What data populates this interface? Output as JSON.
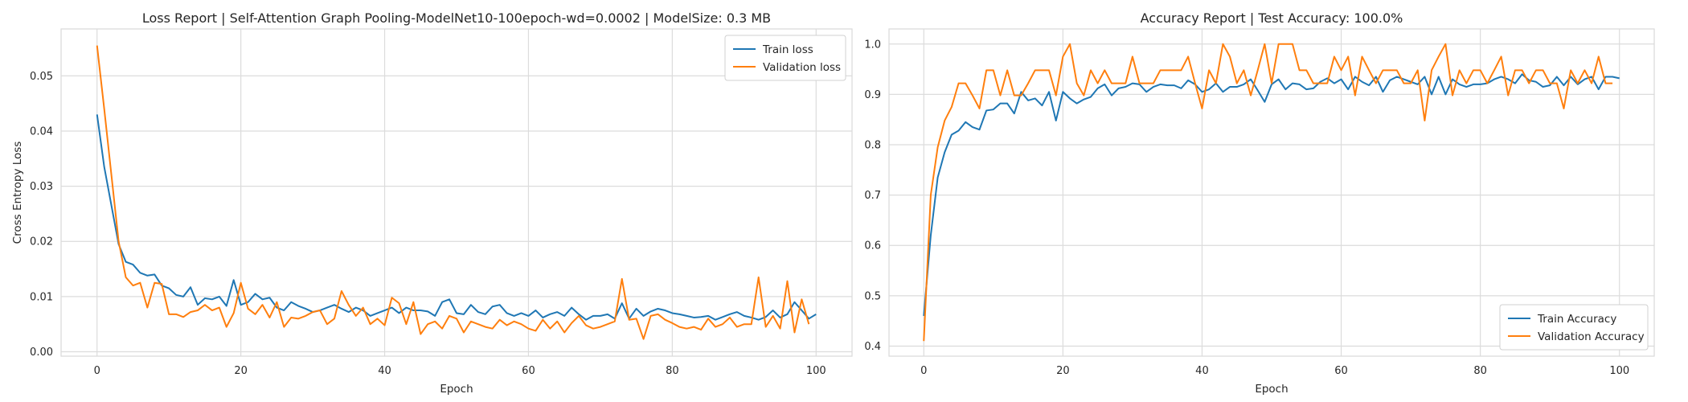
{
  "chart_data": [
    {
      "type": "line",
      "title": "Loss Report | Self-Attention Graph Pooling-ModelNet10-100epoch-wd=0.0002 | ModelSize: 0.3 MB",
      "xlabel": "Epoch",
      "ylabel": "Cross Entropy Loss",
      "xlim": [
        -5,
        105
      ],
      "ylim": [
        -0.0008,
        0.0585
      ],
      "xticks": [
        0,
        20,
        40,
        60,
        80,
        100
      ],
      "yticks": [
        0.0,
        0.01,
        0.02,
        0.03,
        0.04,
        0.05
      ],
      "ytick_labels": [
        "0.00",
        "0.01",
        "0.02",
        "0.03",
        "0.04",
        "0.05"
      ],
      "grid": true,
      "legend": "top-right",
      "series": [
        {
          "name": "Train loss",
          "color": "#1f77b4",
          "values": [
            0.043,
            0.0335,
            0.0265,
            0.0195,
            0.0163,
            0.0158,
            0.0143,
            0.0138,
            0.014,
            0.012,
            0.0115,
            0.0103,
            0.01,
            0.0117,
            0.0085,
            0.0097,
            0.0095,
            0.01,
            0.0083,
            0.013,
            0.0085,
            0.009,
            0.0105,
            0.0095,
            0.0098,
            0.008,
            0.0075,
            0.009,
            0.0083,
            0.0078,
            0.0072,
            0.0075,
            0.008,
            0.0085,
            0.0078,
            0.0072,
            0.008,
            0.0075,
            0.0065,
            0.007,
            0.0075,
            0.008,
            0.007,
            0.008,
            0.0075,
            0.0075,
            0.0073,
            0.0065,
            0.009,
            0.0095,
            0.007,
            0.0068,
            0.0085,
            0.0072,
            0.0068,
            0.0082,
            0.0085,
            0.007,
            0.0065,
            0.007,
            0.0065,
            0.0075,
            0.0062,
            0.0068,
            0.0072,
            0.0065,
            0.008,
            0.0068,
            0.0058,
            0.0065,
            0.0065,
            0.0068,
            0.006,
            0.0088,
            0.006,
            0.0078,
            0.0065,
            0.0073,
            0.0078,
            0.0075,
            0.007,
            0.0068,
            0.0065,
            0.0062,
            0.0063,
            0.0065,
            0.0058,
            0.0063,
            0.0068,
            0.0072,
            0.0065,
            0.0062,
            0.0058,
            0.0063,
            0.0075,
            0.0062,
            0.0068,
            0.009,
            0.0075,
            0.006,
            0.0068
          ]
        },
        {
          "name": "Validation loss",
          "color": "#ff7f0e",
          "values": [
            0.0555,
            0.044,
            0.032,
            0.02,
            0.0135,
            0.012,
            0.0125,
            0.008,
            0.0125,
            0.0123,
            0.0068,
            0.0068,
            0.0063,
            0.0072,
            0.0075,
            0.0085,
            0.0075,
            0.008,
            0.0045,
            0.007,
            0.0125,
            0.0078,
            0.0068,
            0.0085,
            0.0062,
            0.009,
            0.0045,
            0.0062,
            0.006,
            0.0065,
            0.0072,
            0.0075,
            0.005,
            0.006,
            0.011,
            0.0085,
            0.0065,
            0.008,
            0.005,
            0.006,
            0.0048,
            0.0098,
            0.0088,
            0.005,
            0.009,
            0.0032,
            0.005,
            0.0055,
            0.0042,
            0.0065,
            0.006,
            0.0035,
            0.0055,
            0.005,
            0.0045,
            0.0042,
            0.0058,
            0.0048,
            0.0055,
            0.005,
            0.0042,
            0.0038,
            0.0058,
            0.0042,
            0.0055,
            0.0035,
            0.0052,
            0.0065,
            0.0048,
            0.0042,
            0.0045,
            0.005,
            0.0055,
            0.0132,
            0.0058,
            0.006,
            0.0023,
            0.0065,
            0.0068,
            0.0058,
            0.0052,
            0.0045,
            0.0042,
            0.0045,
            0.004,
            0.006,
            0.0045,
            0.005,
            0.0062,
            0.0045,
            0.005,
            0.005,
            0.0135,
            0.0045,
            0.0065,
            0.0042,
            0.0128,
            0.0035,
            0.0095,
            0.005
          ]
        }
      ]
    },
    {
      "type": "line",
      "title": "Accuracy Report | Test Accuracy: 100.0%",
      "xlabel": "Epoch",
      "ylabel": "",
      "xlim": [
        -5,
        105
      ],
      "ylim": [
        0.38,
        1.03
      ],
      "xticks": [
        0,
        20,
        40,
        60,
        80,
        100
      ],
      "yticks": [
        0.4,
        0.5,
        0.6,
        0.7,
        0.8,
        0.9,
        1.0
      ],
      "ytick_labels": [
        "0.4",
        "0.5",
        "0.6",
        "0.7",
        "0.8",
        "0.9",
        "1.0"
      ],
      "grid": true,
      "legend": "bottom-right",
      "series": [
        {
          "name": "Train Accuracy",
          "color": "#1f77b4",
          "values": [
            0.46,
            0.62,
            0.735,
            0.785,
            0.82,
            0.828,
            0.845,
            0.835,
            0.83,
            0.868,
            0.87,
            0.882,
            0.882,
            0.862,
            0.905,
            0.888,
            0.892,
            0.878,
            0.905,
            0.848,
            0.905,
            0.892,
            0.882,
            0.89,
            0.895,
            0.912,
            0.92,
            0.898,
            0.912,
            0.915,
            0.922,
            0.92,
            0.905,
            0.915,
            0.92,
            0.918,
            0.918,
            0.912,
            0.928,
            0.92,
            0.905,
            0.91,
            0.922,
            0.905,
            0.915,
            0.915,
            0.92,
            0.93,
            0.908,
            0.885,
            0.92,
            0.93,
            0.91,
            0.922,
            0.92,
            0.91,
            0.912,
            0.925,
            0.932,
            0.922,
            0.93,
            0.91,
            0.935,
            0.925,
            0.918,
            0.935,
            0.905,
            0.928,
            0.935,
            0.93,
            0.925,
            0.92,
            0.935,
            0.9,
            0.935,
            0.9,
            0.93,
            0.92,
            0.915,
            0.92,
            0.92,
            0.922,
            0.93,
            0.935,
            0.93,
            0.922,
            0.94,
            0.928,
            0.925,
            0.915,
            0.918,
            0.935,
            0.918,
            0.935,
            0.92,
            0.93,
            0.935,
            0.91,
            0.935,
            0.935,
            0.932
          ]
        },
        {
          "name": "Validation Accuracy",
          "color": "#ff7f0e",
          "values": [
            0.41,
            0.7,
            0.795,
            0.848,
            0.875,
            0.922,
            0.922,
            0.898,
            0.872,
            0.948,
            0.948,
            0.898,
            0.948,
            0.898,
            0.898,
            0.922,
            0.948,
            0.948,
            0.948,
            0.898,
            0.975,
            1.0,
            0.922,
            0.898,
            0.948,
            0.922,
            0.948,
            0.922,
            0.922,
            0.922,
            0.975,
            0.922,
            0.922,
            0.922,
            0.948,
            0.948,
            0.948,
            0.948,
            0.975,
            0.922,
            0.872,
            0.948,
            0.922,
            1.0,
            0.975,
            0.922,
            0.948,
            0.898,
            0.948,
            1.0,
            0.922,
            1.0,
            1.0,
            1.0,
            0.948,
            0.948,
            0.922,
            0.922,
            0.922,
            0.975,
            0.948,
            0.975,
            0.898,
            0.975,
            0.948,
            0.922,
            0.948,
            0.948,
            0.948,
            0.922,
            0.922,
            0.948,
            0.848,
            0.948,
            0.975,
            1.0,
            0.898,
            0.948,
            0.922,
            0.948,
            0.948,
            0.922,
            0.948,
            0.975,
            0.898,
            0.948,
            0.948,
            0.922,
            0.948,
            0.948,
            0.922,
            0.922,
            0.872,
            0.948,
            0.922,
            0.948,
            0.922,
            0.975,
            0.922,
            0.922
          ]
        }
      ]
    }
  ]
}
